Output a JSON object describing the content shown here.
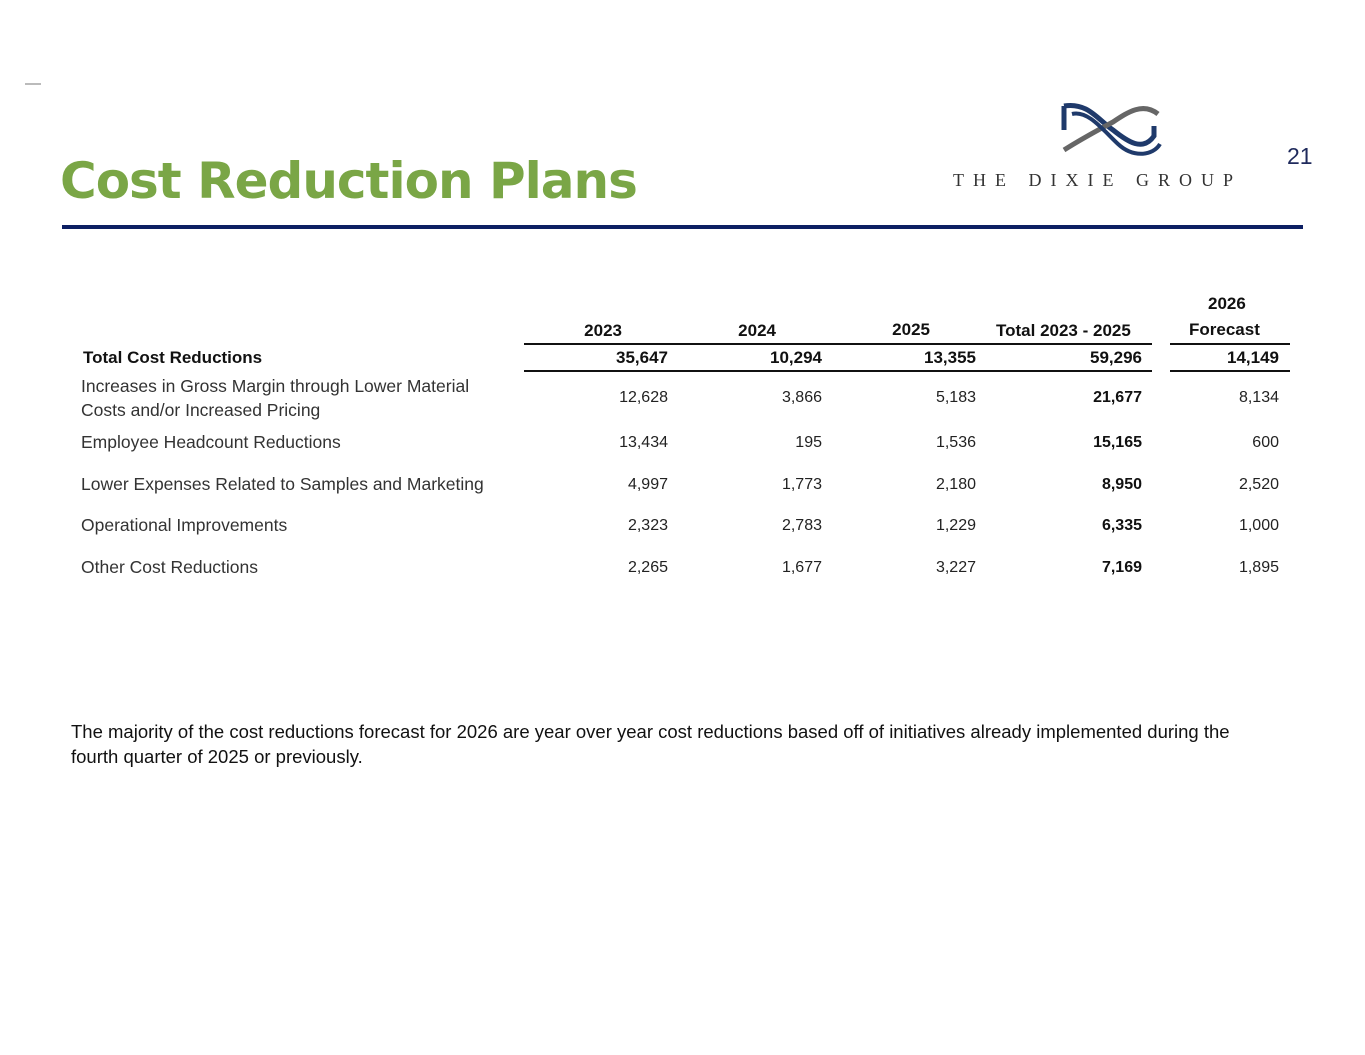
{
  "slide": {
    "title": "Cost Reduction Plans",
    "page_number": "21",
    "logo_text": "THE DIXIE GROUP",
    "accent_color": "#7aa646",
    "rule_color": "#0d1f63"
  },
  "table": {
    "columns": [
      "2023",
      "2024",
      "2025",
      "Total 2023 - 2025",
      "2026",
      "Forecast"
    ],
    "total_row": {
      "label": "Total Cost Reductions",
      "values": [
        "35,647",
        "10,294",
        "13,355",
        "59,296",
        "14,149"
      ]
    },
    "rows": [
      {
        "label": "Increases in Gross Margin through Lower Material",
        "label2": "Costs and/or Increased Pricing",
        "values": [
          "12,628",
          "3,866",
          "5,183",
          "21,677",
          "8,134"
        ]
      },
      {
        "label": "Employee Headcount Reductions",
        "values": [
          "13,434",
          "195",
          "1,536",
          "15,165",
          "600"
        ]
      },
      {
        "label": "Lower Expenses Related to Samples and Marketing",
        "values": [
          "4,997",
          "1,773",
          "2,180",
          "8,950",
          "2,520"
        ]
      },
      {
        "label": "Operational Improvements",
        "values": [
          "2,323",
          "2,783",
          "1,229",
          "6,335",
          "1,000"
        ]
      },
      {
        "label": "Other Cost Reductions",
        "values": [
          "2,265",
          "1,677",
          "3,227",
          "7,169",
          "1,895"
        ]
      }
    ]
  },
  "note": "The majority of the cost reductions forecast for 2026 are year over year cost reductions based off of initiatives already implemented during the fourth quarter of 2025 or previously."
}
